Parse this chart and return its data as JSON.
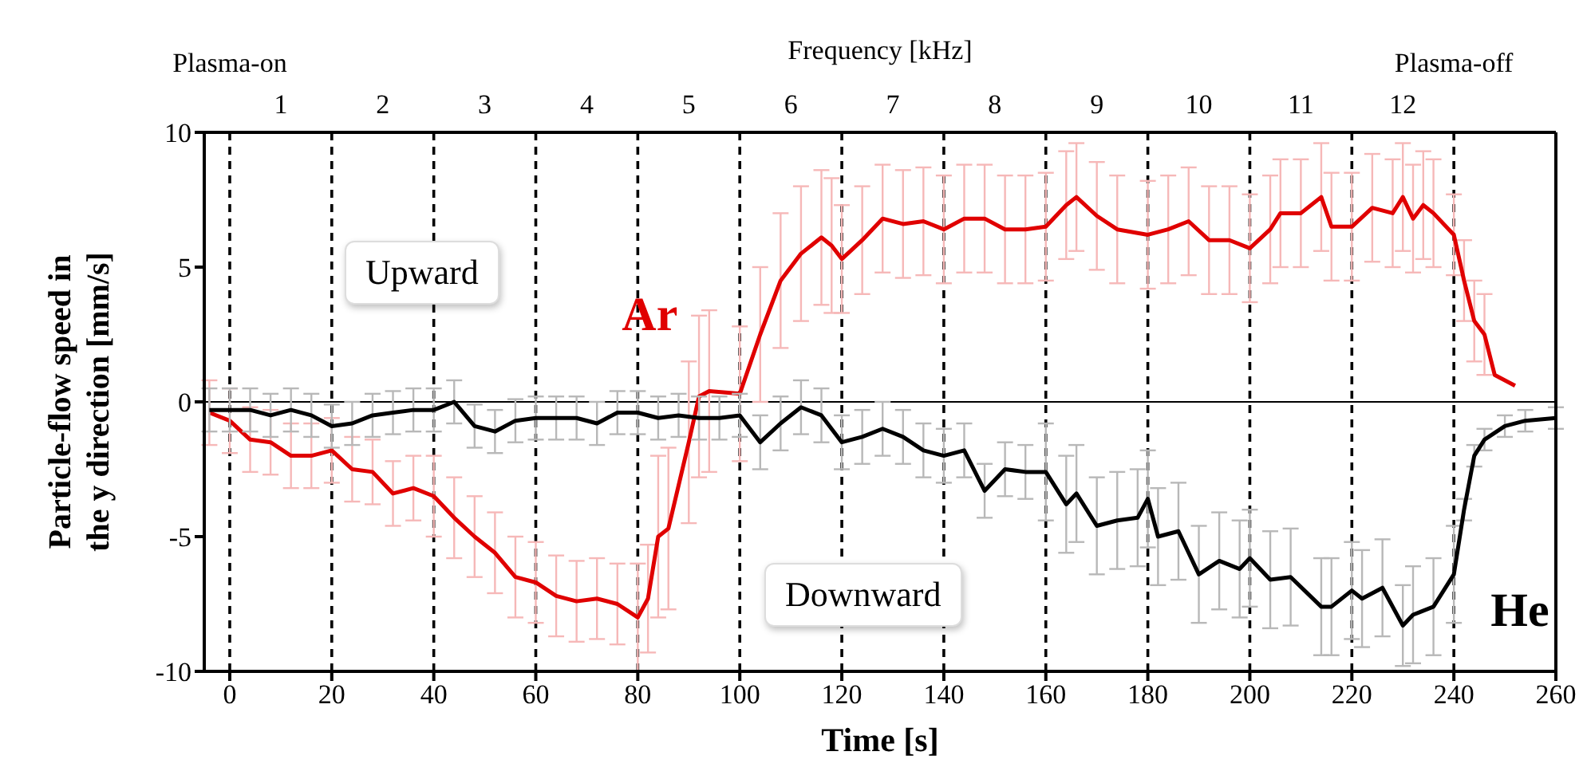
{
  "chart_data": {
    "type": "line",
    "xlabel": "Time [s]",
    "ylabel": "Particle-flow speed in the y direction [mm/s]",
    "x2label": "Frequency [kHz]",
    "xlim": [
      -5,
      260
    ],
    "xticks": [
      0,
      20,
      40,
      60,
      80,
      100,
      120,
      140,
      160,
      180,
      200,
      220,
      240,
      260
    ],
    "ylim": [
      -10,
      10
    ],
    "yticks": [
      -10,
      -5,
      0,
      5,
      10
    ],
    "x2lim": [
      0.25,
      13.5
    ],
    "x2ticks": [
      1,
      2,
      3,
      4,
      5,
      6,
      7,
      8,
      9,
      10,
      11,
      12
    ],
    "marker": "none",
    "line_style": "solid",
    "series": [
      {
        "name": "Ar",
        "color": "#e00000",
        "x": [
          -4,
          0,
          4,
          8,
          12,
          16,
          20,
          24,
          28,
          32,
          36,
          40,
          44,
          48,
          52,
          56,
          60,
          64,
          68,
          72,
          76,
          80,
          82,
          84,
          86,
          90,
          92,
          94,
          100,
          104,
          108,
          112,
          116,
          118,
          120,
          124,
          128,
          132,
          136,
          140,
          144,
          148,
          152,
          156,
          160,
          164,
          166,
          170,
          174,
          180,
          184,
          188,
          192,
          196,
          200,
          204,
          206,
          210,
          214,
          216,
          220,
          224,
          228,
          230,
          232,
          234,
          236,
          240,
          242,
          244,
          246,
          248,
          252
        ],
        "values": [
          -0.4,
          -0.7,
          -1.4,
          -1.5,
          -2.0,
          -2.0,
          -1.8,
          -2.5,
          -2.6,
          -3.4,
          -3.2,
          -3.5,
          -4.3,
          -5.0,
          -5.6,
          -6.5,
          -6.7,
          -7.2,
          -7.4,
          -7.3,
          -7.5,
          -8.0,
          -7.3,
          -5.0,
          -4.7,
          -1.5,
          0.2,
          0.4,
          0.3,
          2.5,
          4.5,
          5.5,
          6.1,
          5.8,
          5.3,
          6.0,
          6.8,
          6.6,
          6.7,
          6.4,
          6.8,
          6.8,
          6.4,
          6.4,
          6.5,
          7.3,
          7.6,
          6.9,
          6.4,
          6.2,
          6.4,
          6.7,
          6.0,
          6.0,
          5.7,
          6.4,
          7.0,
          7.0,
          7.6,
          6.5,
          6.5,
          7.2,
          7.0,
          7.6,
          6.8,
          7.3,
          7.0,
          6.2,
          4.5,
          3.0,
          2.5,
          1.0,
          0.6
        ],
        "errors": [
          1.2,
          1.2,
          1.2,
          1.2,
          1.2,
          1.2,
          1.2,
          1.2,
          1.2,
          1.2,
          1.2,
          1.5,
          1.5,
          1.5,
          1.5,
          1.5,
          1.5,
          1.5,
          1.5,
          1.5,
          1.5,
          2,
          2,
          3,
          3,
          3,
          3,
          3,
          2.5,
          2.5,
          2.5,
          2.5,
          2.5,
          2.5,
          2,
          2,
          2,
          2,
          2,
          2,
          2,
          2,
          2,
          2,
          2,
          2,
          2,
          2,
          2,
          2,
          2,
          2,
          2,
          2,
          2,
          2,
          2,
          2,
          2,
          2,
          2,
          2,
          2,
          2,
          2,
          2,
          2,
          1.5,
          1.5,
          1.5,
          1.5,
          0,
          0
        ]
      },
      {
        "name": "He",
        "color": "#000000",
        "x": [
          -4,
          0,
          4,
          8,
          12,
          16,
          20,
          24,
          28,
          32,
          36,
          40,
          44,
          48,
          52,
          56,
          60,
          64,
          68,
          72,
          76,
          80,
          84,
          88,
          92,
          96,
          100,
          104,
          108,
          112,
          116,
          120,
          124,
          128,
          132,
          136,
          140,
          144,
          148,
          152,
          156,
          160,
          164,
          166,
          170,
          174,
          178,
          180,
          182,
          186,
          190,
          194,
          198,
          200,
          204,
          208,
          214,
          216,
          220,
          222,
          226,
          230,
          232,
          236,
          240,
          242,
          244,
          246,
          250,
          254,
          260
        ],
        "values": [
          -0.3,
          -0.3,
          -0.3,
          -0.5,
          -0.3,
          -0.5,
          -0.9,
          -0.8,
          -0.5,
          -0.4,
          -0.3,
          -0.3,
          0.0,
          -0.9,
          -1.1,
          -0.7,
          -0.6,
          -0.6,
          -0.6,
          -0.8,
          -0.4,
          -0.4,
          -0.6,
          -0.5,
          -0.6,
          -0.6,
          -0.5,
          -1.5,
          -0.8,
          -0.2,
          -0.5,
          -1.5,
          -1.3,
          -1.0,
          -1.3,
          -1.8,
          -2.0,
          -1.8,
          -3.3,
          -2.5,
          -2.6,
          -2.6,
          -3.8,
          -3.4,
          -4.6,
          -4.4,
          -4.3,
          -3.6,
          -5.0,
          -4.8,
          -6.4,
          -5.9,
          -6.2,
          -5.8,
          -6.6,
          -6.5,
          -7.6,
          -7.6,
          -7.0,
          -7.3,
          -6.9,
          -8.3,
          -7.9,
          -7.6,
          -6.4,
          -4.0,
          -2.0,
          -1.4,
          -0.9,
          -0.7,
          -0.6
        ],
        "errors": [
          0.8,
          0.8,
          0.8,
          0.8,
          0.8,
          0.8,
          0.8,
          0.8,
          0.8,
          0.8,
          0.8,
          0.8,
          0.8,
          0.8,
          0.8,
          0.8,
          0.8,
          0.8,
          0.8,
          0.8,
          0.8,
          0.8,
          0.8,
          0.8,
          0.8,
          0.8,
          0.8,
          1,
          1,
          1,
          1,
          1,
          1,
          1,
          1,
          1,
          1,
          1,
          1,
          1,
          1,
          1.8,
          1.8,
          1.8,
          1.8,
          1.8,
          1.8,
          1.8,
          1.8,
          1.8,
          1.8,
          1.8,
          1.8,
          1.8,
          1.8,
          1.8,
          1.8,
          1.8,
          1.8,
          1.8,
          1.8,
          1.5,
          1.8,
          1.8,
          1.8,
          0.4,
          0.4,
          0.4,
          0.4,
          0.4,
          0.4
        ]
      }
    ],
    "ref_lines": [
      {
        "axis": "y",
        "value": 0,
        "color": "#000000"
      },
      {
        "axis": "x",
        "value": 0,
        "label": "Plasma-on",
        "line_style": "dashed",
        "color": "#000000"
      },
      {
        "axis": "x",
        "value": 20,
        "line_style": "dashed",
        "color": "#000000"
      },
      {
        "axis": "x",
        "value": 40,
        "line_style": "dashed",
        "color": "#000000"
      },
      {
        "axis": "x",
        "value": 60,
        "line_style": "dashed",
        "color": "#000000"
      },
      {
        "axis": "x",
        "value": 80,
        "line_style": "dashed",
        "color": "#000000"
      },
      {
        "axis": "x",
        "value": 100,
        "line_style": "dashed",
        "color": "#000000"
      },
      {
        "axis": "x",
        "value": 120,
        "line_style": "dashed",
        "color": "#000000"
      },
      {
        "axis": "x",
        "value": 140,
        "line_style": "dashed",
        "color": "#000000"
      },
      {
        "axis": "x",
        "value": 160,
        "line_style": "dashed",
        "color": "#000000"
      },
      {
        "axis": "x",
        "value": 180,
        "line_style": "dashed",
        "color": "#000000"
      },
      {
        "axis": "x",
        "value": 200,
        "line_style": "dashed",
        "color": "#000000"
      },
      {
        "axis": "x",
        "value": 220,
        "line_style": "dashed",
        "color": "#000000"
      },
      {
        "axis": "x",
        "value": 240,
        "label": "Plasma-off",
        "line_style": "dashed",
        "color": "#000000"
      }
    ],
    "annotations": [
      "Upward",
      "Downward"
    ]
  }
}
